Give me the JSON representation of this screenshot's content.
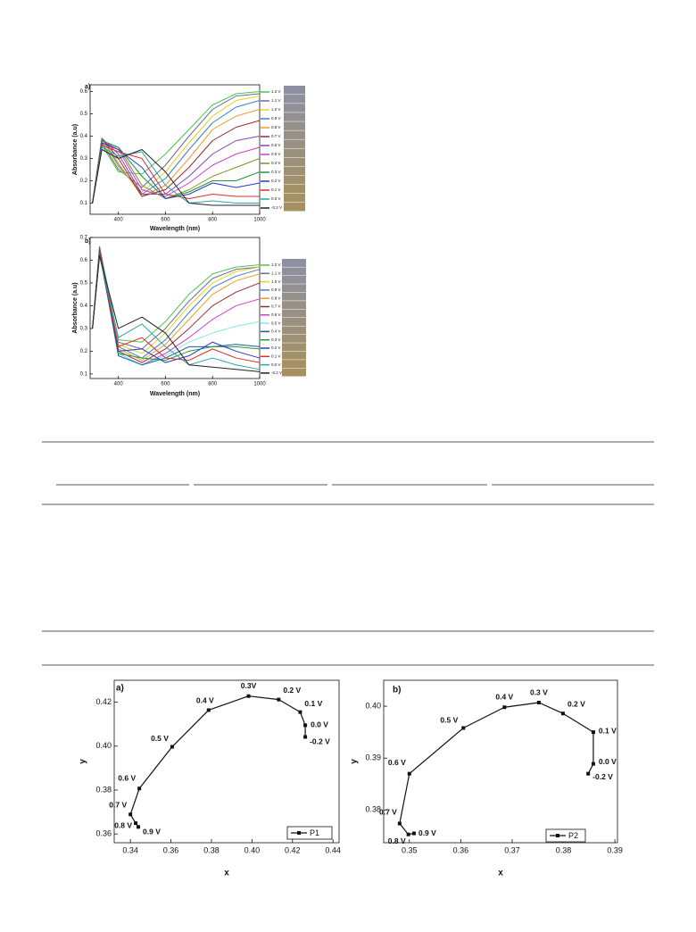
{
  "chart_data": [
    {
      "type": "line",
      "panel_label": "a)",
      "x_label": "Wavelength (nm)",
      "y_label": "Absorbance (a.u)",
      "x": [
        290,
        330,
        400,
        500,
        600,
        700,
        800,
        900,
        1000
      ],
      "xlim": [
        280,
        1000
      ],
      "xticks": [
        400,
        600,
        800,
        1000
      ],
      "ylim": [
        0.05,
        0.63
      ],
      "yticks": [
        0.1,
        0.2,
        0.3,
        0.4,
        0.5,
        0.6
      ],
      "series": [
        {
          "name": "1.2 V",
          "color": "#4cc24c",
          "values": [
            0.1,
            0.36,
            0.24,
            0.23,
            0.32,
            0.43,
            0.54,
            0.59,
            0.6
          ]
        },
        {
          "name": "1.1 V",
          "color": "#6a6a9a",
          "values": [
            0.1,
            0.37,
            0.25,
            0.17,
            0.27,
            0.4,
            0.52,
            0.58,
            0.59
          ]
        },
        {
          "name": "1.0 V",
          "color": "#e6d21e",
          "values": [
            0.1,
            0.38,
            0.26,
            0.15,
            0.24,
            0.37,
            0.49,
            0.56,
            0.58
          ]
        },
        {
          "name": "0.9 V",
          "color": "#3a7fd0",
          "values": [
            0.1,
            0.39,
            0.27,
            0.14,
            0.21,
            0.34,
            0.46,
            0.53,
            0.56
          ]
        },
        {
          "name": "0.8 V",
          "color": "#f09a2a",
          "values": [
            0.1,
            0.39,
            0.28,
            0.13,
            0.18,
            0.3,
            0.43,
            0.49,
            0.52
          ]
        },
        {
          "name": "0.7 V",
          "color": "#9a2a2a",
          "values": [
            0.1,
            0.39,
            0.3,
            0.13,
            0.16,
            0.26,
            0.38,
            0.44,
            0.47
          ]
        },
        {
          "name": "0.6 V",
          "color": "#7a4ab0",
          "values": [
            0.1,
            0.39,
            0.32,
            0.14,
            0.14,
            0.22,
            0.32,
            0.38,
            0.4
          ]
        },
        {
          "name": "0.5 V",
          "color": "#d23cc8",
          "values": [
            0.1,
            0.38,
            0.34,
            0.16,
            0.13,
            0.19,
            0.27,
            0.32,
            0.35
          ]
        },
        {
          "name": "0.4 V",
          "color": "#8a8a2a",
          "values": [
            0.1,
            0.38,
            0.35,
            0.18,
            0.12,
            0.16,
            0.22,
            0.26,
            0.3
          ]
        },
        {
          "name": "0.3 V",
          "color": "#1a9a3a",
          "values": [
            0.1,
            0.38,
            0.35,
            0.22,
            0.12,
            0.15,
            0.2,
            0.2,
            0.24
          ]
        },
        {
          "name": "0.2 V",
          "color": "#2a3ac8",
          "values": [
            0.1,
            0.37,
            0.34,
            0.26,
            0.12,
            0.14,
            0.19,
            0.17,
            0.19
          ]
        },
        {
          "name": "0.1 V",
          "color": "#e02a2a",
          "values": [
            0.1,
            0.36,
            0.33,
            0.3,
            0.14,
            0.12,
            0.14,
            0.13,
            0.13
          ]
        },
        {
          "name": "0.0 V",
          "color": "#2aa6a6",
          "values": [
            0.1,
            0.35,
            0.31,
            0.33,
            0.18,
            0.1,
            0.11,
            0.1,
            0.1
          ]
        },
        {
          "name": "-0.2 V",
          "color": "#222222",
          "values": [
            0.1,
            0.34,
            0.3,
            0.34,
            0.24,
            0.1,
            0.09,
            0.09,
            0.09
          ]
        }
      ]
    },
    {
      "type": "line",
      "panel_label": "b)",
      "x_label": "Wavelength (nm)",
      "y_label": "Absorbance (a.u)",
      "x": [
        290,
        320,
        400,
        500,
        600,
        700,
        800,
        900,
        1000
      ],
      "xlim": [
        280,
        1000
      ],
      "xticks": [
        400,
        600,
        800,
        1000
      ],
      "ylim": [
        0.08,
        0.7
      ],
      "yticks": [
        0.1,
        0.2,
        0.3,
        0.4,
        0.5,
        0.6,
        0.7
      ],
      "series": [
        {
          "name": "1.2 V",
          "color": "#4cc24c",
          "values": [
            0.3,
            0.66,
            0.25,
            0.24,
            0.33,
            0.45,
            0.54,
            0.57,
            0.58
          ]
        },
        {
          "name": "1.1 V",
          "color": "#6a6a9a",
          "values": [
            0.3,
            0.66,
            0.24,
            0.21,
            0.3,
            0.42,
            0.52,
            0.56,
            0.57
          ]
        },
        {
          "name": "1.0 V",
          "color": "#e6d21e",
          "values": [
            0.3,
            0.65,
            0.23,
            0.19,
            0.28,
            0.4,
            0.5,
            0.55,
            0.57
          ]
        },
        {
          "name": "0.9 V",
          "color": "#3a7fd0",
          "values": [
            0.3,
            0.65,
            0.22,
            0.17,
            0.25,
            0.37,
            0.48,
            0.53,
            0.56
          ]
        },
        {
          "name": "0.8 V",
          "color": "#f09a2a",
          "values": [
            0.3,
            0.65,
            0.21,
            0.16,
            0.23,
            0.34,
            0.45,
            0.51,
            0.54
          ]
        },
        {
          "name": "0.7 V",
          "color": "#9a2a2a",
          "values": [
            0.3,
            0.65,
            0.2,
            0.15,
            0.21,
            0.3,
            0.4,
            0.46,
            0.5
          ]
        },
        {
          "name": "0.6 V",
          "color": "#d23cc8",
          "values": [
            0.3,
            0.64,
            0.19,
            0.14,
            0.19,
            0.26,
            0.34,
            0.4,
            0.43
          ]
        },
        {
          "name": "0.5 V",
          "color": "#8ae6e6",
          "values": [
            0.3,
            0.64,
            0.19,
            0.14,
            0.18,
            0.24,
            0.28,
            0.31,
            0.33
          ]
        },
        {
          "name": "0.4 V",
          "color": "#1a5a9a",
          "values": [
            0.3,
            0.64,
            0.18,
            0.14,
            0.17,
            0.22,
            0.22,
            0.23,
            0.22
          ]
        },
        {
          "name": "0.3 V",
          "color": "#1a9a3a",
          "values": [
            0.3,
            0.63,
            0.19,
            0.17,
            0.16,
            0.2,
            0.22,
            0.22,
            0.21
          ]
        },
        {
          "name": "0.2 V",
          "color": "#2a3ac8",
          "values": [
            0.3,
            0.63,
            0.2,
            0.21,
            0.15,
            0.18,
            0.24,
            0.2,
            0.17
          ]
        },
        {
          "name": "0.1 V",
          "color": "#e02a2a",
          "values": [
            0.3,
            0.63,
            0.22,
            0.26,
            0.17,
            0.16,
            0.21,
            0.17,
            0.15
          ]
        },
        {
          "name": "0.0 V",
          "color": "#2aa6a6",
          "values": [
            0.3,
            0.62,
            0.26,
            0.32,
            0.22,
            0.14,
            0.17,
            0.14,
            0.12
          ]
        },
        {
          "name": "-0.2 V",
          "color": "#222222",
          "values": [
            0.3,
            0.62,
            0.3,
            0.35,
            0.28,
            0.14,
            0.13,
            0.12,
            0.11
          ]
        }
      ]
    },
    {
      "type": "line",
      "panel_label": "a)",
      "x_label": "x",
      "y_label": "y",
      "xlim": [
        0.332,
        0.443
      ],
      "xticks": [
        0.34,
        0.36,
        0.38,
        {
          "value": 0.4,
          "label": "0.40"
        },
        0.42,
        0.44
      ],
      "ylim": [
        0.356,
        0.43
      ],
      "yticks": [
        0.36,
        0.38,
        {
          "value": 0.4,
          "label": "0.40"
        },
        0.42
      ],
      "series": [
        {
          "name": "P1",
          "color": "#111111",
          "x": [
            0.4263,
            0.4263,
            0.4238,
            0.4132,
            0.3983,
            0.3786,
            0.3606,
            0.3444,
            0.34,
            0.3426,
            0.3439
          ],
          "values": [
            0.4042,
            0.4095,
            0.4155,
            0.4212,
            0.4228,
            0.4164,
            0.3997,
            0.3807,
            0.3689,
            0.3649,
            0.3632
          ],
          "point_labels": [
            "-0.2 V",
            "0.0 V",
            "0.1 V",
            "0.2 V",
            "0.3V",
            "0.4 V",
            "0.5 V",
            "0.6 V",
            "0.7 V",
            "0.8 V",
            "0.9 V"
          ]
        }
      ]
    },
    {
      "type": "line",
      "panel_label": "b)",
      "x_label": "x",
      "y_label": "y",
      "xlim": [
        0.345,
        0.3905
      ],
      "xticks": [
        0.35,
        0.36,
        0.37,
        0.38,
        0.39
      ],
      "ylim": [
        0.3737,
        0.405
      ],
      "yticks": [
        0.38,
        0.39,
        {
          "value": 0.4,
          "label": "0.40"
        }
      ],
      "series": [
        {
          "name": "P2",
          "color": "#111111",
          "x": [
            0.3848,
            0.3858,
            0.3858,
            0.3799,
            0.3752,
            0.3685,
            0.3605,
            0.35,
            0.3481,
            0.3498,
            0.3509
          ],
          "values": [
            0.387,
            0.3889,
            0.395,
            0.3986,
            0.4007,
            0.3998,
            0.3958,
            0.387,
            0.3774,
            0.3753,
            0.3755
          ],
          "point_labels": [
            "-0.2 V",
            "0.0 V",
            "0.1 V",
            "0.2 V",
            "0.3 V",
            "0.4 V",
            "0.5 V",
            "0.6 V",
            "0.7 V",
            "0.8 V",
            "0.9 V"
          ]
        }
      ]
    }
  ]
}
